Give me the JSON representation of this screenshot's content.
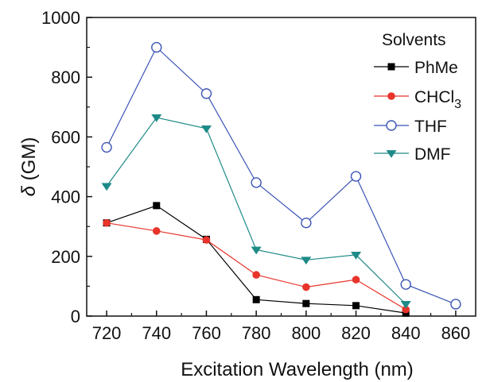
{
  "chart_data": {
    "type": "line",
    "title": "",
    "xlabel": "Excitation Wavelength (nm)",
    "ylabel_symbol": "δ",
    "ylabel_unit": "(GM)",
    "xlim": [
      712,
      868
    ],
    "ylim": [
      0,
      1000
    ],
    "x_ticks": [
      720,
      740,
      760,
      780,
      800,
      820,
      840,
      860
    ],
    "y_ticks": [
      0,
      200,
      400,
      600,
      800,
      1000
    ],
    "grid": false,
    "legend": {
      "title": "Solvents",
      "placement": "top-right"
    },
    "series": [
      {
        "name": "PhMe",
        "color": "#000000",
        "marker": "square-filled",
        "x": [
          720,
          740,
          760,
          780,
          800,
          820,
          840
        ],
        "y": [
          312,
          370,
          257,
          55,
          42,
          35,
          10
        ]
      },
      {
        "name": "CHCl",
        "name_subscript": "3",
        "color": "#e8332a",
        "marker": "circle-filled",
        "x": [
          720,
          740,
          760,
          780,
          800,
          820,
          840
        ],
        "y": [
          312,
          285,
          255,
          138,
          97,
          122,
          22
        ]
      },
      {
        "name": "THF",
        "color": "#3b55b5",
        "marker": "circle-open",
        "x": [
          720,
          740,
          760,
          780,
          800,
          820,
          840,
          860
        ],
        "y": [
          565,
          900,
          745,
          447,
          312,
          468,
          106,
          40
        ]
      },
      {
        "name": "DMF",
        "color": "#1e8b88",
        "marker": "triangle-down-filled",
        "x": [
          720,
          740,
          760,
          780,
          800,
          820,
          840
        ],
        "y": [
          435,
          665,
          628,
          222,
          188,
          205,
          40
        ]
      }
    ]
  }
}
